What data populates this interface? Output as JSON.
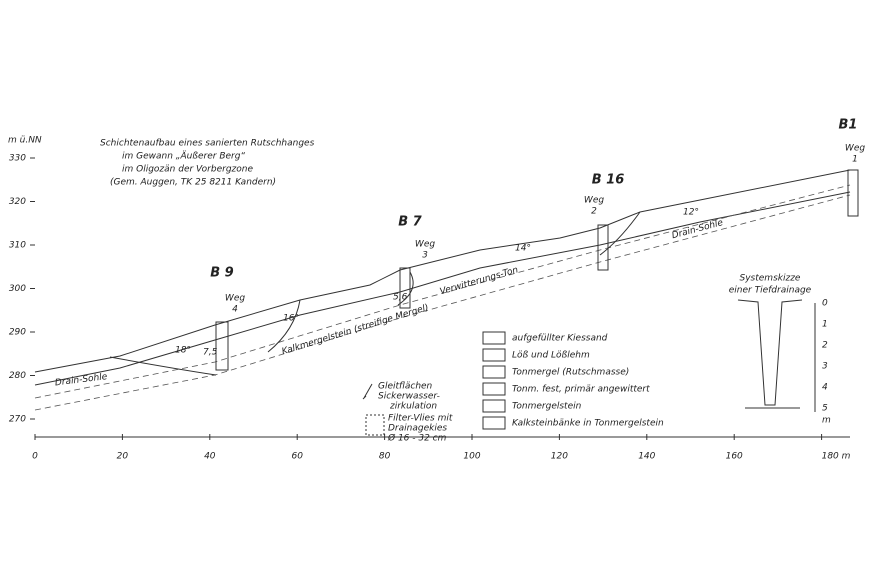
{
  "title_block": [
    "Schichtenaufbau eines sanierten Rutschhanges",
    "im Gewann „Äußerer Berg“",
    "im Oligozän der Vorbergzone",
    "(Gem. Auggen, TK 25  8211 Kandern)"
  ],
  "y_axis": {
    "unit": "m ü.NN",
    "labels": [
      "330",
      "320",
      "310",
      "300",
      "290",
      "280",
      "270"
    ]
  },
  "x_axis": {
    "labels": [
      "0",
      "20",
      "40",
      "60",
      "80",
      "100",
      "120",
      "140",
      "160",
      "180 m"
    ]
  },
  "boreholes": [
    {
      "name": "B1",
      "path": "Weg",
      "number": "1"
    },
    {
      "name": "B 16",
      "path": "Weg",
      "number": "2"
    },
    {
      "name": "B 7",
      "path": "Weg",
      "number": "3"
    },
    {
      "name": "B 9",
      "path": "Weg",
      "number": "4"
    }
  ],
  "angles": [
    "12°",
    "14°",
    "16°",
    "18°"
  ],
  "depths": [
    "7,5",
    "5,6"
  ],
  "layers": {
    "drain_soles": [
      "Drain-Sohle",
      "Drain-Sohle"
    ],
    "weathered": "Verwitterungs-Ton",
    "marl": "Kalkmergelstein  (streifige Mergel)"
  },
  "legend": [
    "aufgefüllter Kiessand",
    "Löß und Lößlehm",
    "Tonmergel (Rutschmasse)",
    "Tonm. fest, primär angewittert",
    "Tonmergelstein",
    "Kalksteinbänke in Tonmergelstein"
  ],
  "symbols": [
    "Gleitflächen",
    "Sickerwasser-",
    "zirkulation",
    "Filter-Vlies mit",
    "Drainagekies",
    "Ø 16 - 32 cm"
  ],
  "sketch": {
    "title": [
      "Systemskizze",
      "einer Tiefdrainage"
    ],
    "scale": [
      "0",
      "1",
      "2",
      "3",
      "4",
      "5"
    ],
    "unit": "m"
  }
}
